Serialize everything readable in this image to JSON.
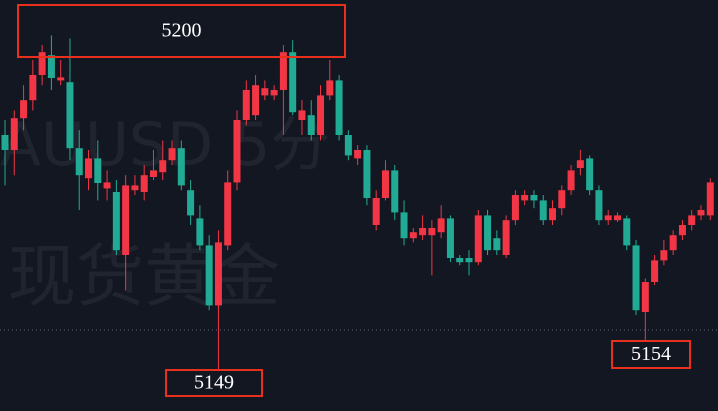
{
  "chart_data": {
    "type": "candlestick",
    "watermark": [
      "AUUSD 5分",
      "现货黄金"
    ],
    "up_color": "#f23645",
    "down_color": "#22ab94",
    "ylim": [
      5142.2,
      5210.7
    ],
    "price_line": 5155.7,
    "annotations": [
      "5200",
      "5149",
      "5154"
    ],
    "candles": [
      [
        5188.2,
        5190.7,
        5179.8,
        5185.7
      ],
      [
        5185.7,
        5192.3,
        5181.5,
        5191.0
      ],
      [
        5191.0,
        5196.5,
        5189.0,
        5194.0
      ],
      [
        5194.0,
        5200.7,
        5192.3,
        5198.2
      ],
      [
        5198.2,
        5203.2,
        5196.5,
        5202.0
      ],
      [
        5201.5,
        5204.8,
        5195.7,
        5197.7
      ],
      [
        5197.3,
        5200.7,
        5196.5,
        5197.8
      ],
      [
        5197.0,
        5204.3,
        5184.0,
        5186.0
      ],
      [
        5186.0,
        5189.0,
        5175.7,
        5181.5
      ],
      [
        5181.0,
        5185.7,
        5179.0,
        5184.3
      ],
      [
        5184.3,
        5187.3,
        5177.3,
        5180.2
      ],
      [
        5179.3,
        5182.3,
        5177.3,
        5180.3
      ],
      [
        5178.7,
        5180.7,
        5168.2,
        5169.0
      ],
      [
        5168.2,
        5181.5,
        5162.3,
        5179.8
      ],
      [
        5179.0,
        5181.5,
        5178.2,
        5179.8
      ],
      [
        5178.7,
        5183.2,
        5177.3,
        5181.5
      ],
      [
        5181.2,
        5185.7,
        5180.7,
        5182.3
      ],
      [
        5182.0,
        5187.3,
        5180.7,
        5184.0
      ],
      [
        5184.0,
        5187.3,
        5183.2,
        5186.0
      ],
      [
        5186.0,
        5187.3,
        5179.0,
        5179.8
      ],
      [
        5179.0,
        5180.7,
        5173.2,
        5174.8
      ],
      [
        5174.3,
        5176.5,
        5169.0,
        5169.8
      ],
      [
        5169.8,
        5171.5,
        5159.0,
        5159.8
      ],
      [
        5159.8,
        5172.3,
        5149.0,
        5170.3
      ],
      [
        5169.8,
        5182.3,
        5169.0,
        5180.3
      ],
      [
        5180.3,
        5192.3,
        5179.0,
        5190.7
      ],
      [
        5190.7,
        5197.3,
        5189.8,
        5195.7
      ],
      [
        5191.5,
        5198.2,
        5190.7,
        5196.5
      ],
      [
        5194.8,
        5197.3,
        5194.0,
        5196.0
      ],
      [
        5194.8,
        5196.5,
        5194.0,
        5195.7
      ],
      [
        5195.7,
        5203.2,
        5188.2,
        5202.0
      ],
      [
        5202.0,
        5204.0,
        5191.5,
        5192.0
      ],
      [
        5190.7,
        5194.0,
        5188.2,
        5192.3
      ],
      [
        5191.5,
        5194.0,
        5187.3,
        5188.2
      ],
      [
        5188.2,
        5196.5,
        5187.3,
        5194.8
      ],
      [
        5194.8,
        5200.7,
        5194.0,
        5197.3
      ],
      [
        5197.3,
        5198.2,
        5187.3,
        5188.2
      ],
      [
        5188.2,
        5189.0,
        5184.0,
        5184.8
      ],
      [
        5184.3,
        5186.5,
        5183.2,
        5185.7
      ],
      [
        5185.7,
        5186.5,
        5176.5,
        5177.7
      ],
      [
        5173.2,
        5179.0,
        5172.3,
        5177.7
      ],
      [
        5177.7,
        5184.0,
        5177.3,
        5182.3
      ],
      [
        5182.3,
        5183.2,
        5174.0,
        5175.3
      ],
      [
        5175.3,
        5177.3,
        5169.8,
        5171.0
      ],
      [
        5171.0,
        5172.7,
        5170.3,
        5172.0
      ],
      [
        5171.5,
        5174.8,
        5170.7,
        5172.7
      ],
      [
        5171.5,
        5174.0,
        5164.8,
        5172.7
      ],
      [
        5172.0,
        5176.5,
        5171.0,
        5174.3
      ],
      [
        5174.3,
        5174.8,
        5167.0,
        5167.7
      ],
      [
        5167.7,
        5168.2,
        5166.5,
        5167.0
      ],
      [
        5167.7,
        5169.0,
        5164.8,
        5167.0
      ],
      [
        5167.0,
        5175.7,
        5166.5,
        5174.8
      ],
      [
        5174.8,
        5175.7,
        5168.2,
        5169.0
      ],
      [
        5171.0,
        5172.3,
        5168.2,
        5169.0
      ],
      [
        5168.2,
        5174.8,
        5167.7,
        5174.0
      ],
      [
        5174.0,
        5179.0,
        5173.2,
        5178.2
      ],
      [
        5177.3,
        5179.0,
        5176.5,
        5178.2
      ],
      [
        5178.2,
        5179.0,
        5176.0,
        5177.3
      ],
      [
        5177.3,
        5178.2,
        5173.2,
        5174.0
      ],
      [
        5174.0,
        5177.3,
        5173.2,
        5176.0
      ],
      [
        5176.0,
        5179.8,
        5174.8,
        5179.0
      ],
      [
        5179.0,
        5183.2,
        5178.2,
        5182.3
      ],
      [
        5182.7,
        5185.7,
        5181.5,
        5184.0
      ],
      [
        5184.3,
        5184.8,
        5178.2,
        5179.0
      ],
      [
        5179.0,
        5179.8,
        5173.2,
        5174.0
      ],
      [
        5174.0,
        5175.7,
        5173.2,
        5174.8
      ],
      [
        5174.0,
        5175.3,
        5173.7,
        5174.8
      ],
      [
        5174.3,
        5174.8,
        5169.0,
        5169.8
      ],
      [
        5169.8,
        5170.7,
        5158.2,
        5159.0
      ],
      [
        5158.7,
        5164.3,
        5154.0,
        5163.7
      ],
      [
        5163.7,
        5168.2,
        5163.2,
        5167.3
      ],
      [
        5167.3,
        5170.7,
        5166.5,
        5169.0
      ],
      [
        5169.0,
        5172.3,
        5168.2,
        5171.5
      ],
      [
        5171.5,
        5174.0,
        5170.7,
        5173.2
      ],
      [
        5173.2,
        5175.7,
        5172.3,
        5174.8
      ],
      [
        5174.8,
        5176.5,
        5174.0,
        5175.7
      ],
      [
        5174.8,
        5181.0,
        5174.0,
        5180.3
      ]
    ]
  }
}
